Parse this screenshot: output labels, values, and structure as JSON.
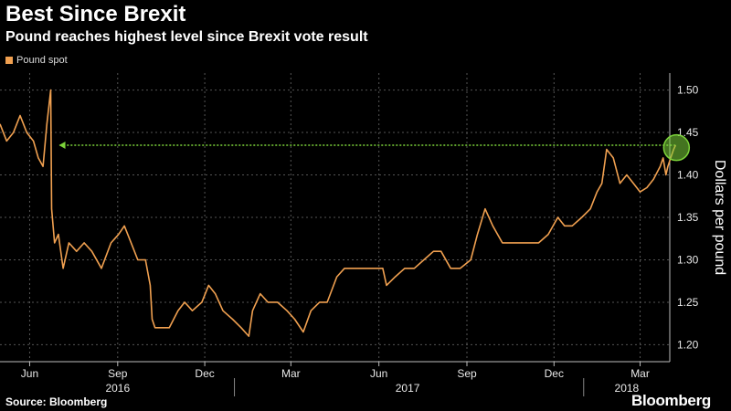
{
  "title": "Best Since Brexit",
  "subtitle": "Pound reaches highest level since Brexit vote result",
  "source": "Source: Bloomberg",
  "brand": "Bloomberg",
  "colors": {
    "line": "#f0a050",
    "arrow": "#7cd33a",
    "grid": "#555555",
    "background": "#000000"
  },
  "chart_data": {
    "type": "line",
    "title": "Best Since Brexit",
    "subtitle": "Pound reaches highest level since Brexit vote result",
    "legend": [
      "Pound spot"
    ],
    "ylabel": "Dollars per pound",
    "xlabel": "",
    "ylim": [
      1.18,
      1.52
    ],
    "yticks": [
      1.2,
      1.25,
      1.3,
      1.35,
      1.4,
      1.45,
      1.5
    ],
    "xlim": [
      "2016-05-01",
      "2018-04-01"
    ],
    "month_ticks": [
      {
        "label": "Jun",
        "date": "2016-06-01"
      },
      {
        "label": "Sep",
        "date": "2016-09-01"
      },
      {
        "label": "Dec",
        "date": "2016-12-01"
      },
      {
        "label": "Mar",
        "date": "2017-03-01"
      },
      {
        "label": "Jun",
        "date": "2017-06-01"
      },
      {
        "label": "Sep",
        "date": "2017-09-01"
      },
      {
        "label": "Dec",
        "date": "2017-12-01"
      },
      {
        "label": "Mar",
        "date": "2018-03-01"
      }
    ],
    "year_labels": [
      {
        "label": "2016",
        "date": "2016-09-01"
      },
      {
        "label": "2017",
        "date": "2017-07-01"
      },
      {
        "label": "2018",
        "date": "2018-02-15"
      }
    ],
    "year_separators": [
      "2017-01-01",
      "2018-01-01"
    ],
    "series": [
      {
        "name": "Pound spot",
        "points": [
          [
            "2016-05-01",
            1.46
          ],
          [
            "2016-05-08",
            1.44
          ],
          [
            "2016-05-15",
            1.45
          ],
          [
            "2016-05-22",
            1.47
          ],
          [
            "2016-05-29",
            1.45
          ],
          [
            "2016-06-05",
            1.44
          ],
          [
            "2016-06-10",
            1.42
          ],
          [
            "2016-06-15",
            1.41
          ],
          [
            "2016-06-19",
            1.46
          ],
          [
            "2016-06-23",
            1.5
          ],
          [
            "2016-06-24",
            1.36
          ],
          [
            "2016-06-27",
            1.32
          ],
          [
            "2016-07-01",
            1.33
          ],
          [
            "2016-07-06",
            1.29
          ],
          [
            "2016-07-12",
            1.32
          ],
          [
            "2016-07-20",
            1.31
          ],
          [
            "2016-07-28",
            1.32
          ],
          [
            "2016-08-05",
            1.31
          ],
          [
            "2016-08-15",
            1.29
          ],
          [
            "2016-08-25",
            1.32
          ],
          [
            "2016-09-02",
            1.33
          ],
          [
            "2016-09-08",
            1.34
          ],
          [
            "2016-09-15",
            1.32
          ],
          [
            "2016-09-22",
            1.3
          ],
          [
            "2016-09-30",
            1.3
          ],
          [
            "2016-10-05",
            1.27
          ],
          [
            "2016-10-07",
            1.23
          ],
          [
            "2016-10-10",
            1.22
          ],
          [
            "2016-10-18",
            1.22
          ],
          [
            "2016-10-25",
            1.22
          ],
          [
            "2016-11-03",
            1.24
          ],
          [
            "2016-11-10",
            1.25
          ],
          [
            "2016-11-18",
            1.24
          ],
          [
            "2016-11-28",
            1.25
          ],
          [
            "2016-12-05",
            1.27
          ],
          [
            "2016-12-12",
            1.26
          ],
          [
            "2016-12-20",
            1.24
          ],
          [
            "2016-12-30",
            1.23
          ],
          [
            "2017-01-08",
            1.22
          ],
          [
            "2017-01-16",
            1.21
          ],
          [
            "2017-01-20",
            1.24
          ],
          [
            "2017-01-28",
            1.26
          ],
          [
            "2017-02-05",
            1.25
          ],
          [
            "2017-02-15",
            1.25
          ],
          [
            "2017-02-25",
            1.24
          ],
          [
            "2017-03-05",
            1.23
          ],
          [
            "2017-03-14",
            1.215
          ],
          [
            "2017-03-22",
            1.24
          ],
          [
            "2017-03-31",
            1.25
          ],
          [
            "2017-04-08",
            1.25
          ],
          [
            "2017-04-18",
            1.28
          ],
          [
            "2017-04-26",
            1.29
          ],
          [
            "2017-05-05",
            1.29
          ],
          [
            "2017-05-15",
            1.29
          ],
          [
            "2017-05-25",
            1.29
          ],
          [
            "2017-06-05",
            1.29
          ],
          [
            "2017-06-09",
            1.27
          ],
          [
            "2017-06-18",
            1.28
          ],
          [
            "2017-06-28",
            1.29
          ],
          [
            "2017-07-08",
            1.29
          ],
          [
            "2017-07-18",
            1.3
          ],
          [
            "2017-07-28",
            1.31
          ],
          [
            "2017-08-05",
            1.31
          ],
          [
            "2017-08-15",
            1.29
          ],
          [
            "2017-08-25",
            1.29
          ],
          [
            "2017-09-05",
            1.3
          ],
          [
            "2017-09-12",
            1.33
          ],
          [
            "2017-09-20",
            1.36
          ],
          [
            "2017-09-28",
            1.34
          ],
          [
            "2017-10-08",
            1.32
          ],
          [
            "2017-10-18",
            1.32
          ],
          [
            "2017-10-28",
            1.32
          ],
          [
            "2017-11-05",
            1.32
          ],
          [
            "2017-11-15",
            1.32
          ],
          [
            "2017-11-25",
            1.33
          ],
          [
            "2017-12-05",
            1.35
          ],
          [
            "2017-12-12",
            1.34
          ],
          [
            "2017-12-20",
            1.34
          ],
          [
            "2017-12-30",
            1.35
          ],
          [
            "2018-01-08",
            1.36
          ],
          [
            "2018-01-15",
            1.38
          ],
          [
            "2018-01-20",
            1.39
          ],
          [
            "2018-01-25",
            1.43
          ],
          [
            "2018-02-01",
            1.42
          ],
          [
            "2018-02-08",
            1.39
          ],
          [
            "2018-02-15",
            1.4
          ],
          [
            "2018-02-22",
            1.39
          ],
          [
            "2018-03-01",
            1.38
          ],
          [
            "2018-03-08",
            1.385
          ],
          [
            "2018-03-15",
            1.395
          ],
          [
            "2018-03-22",
            1.41
          ],
          [
            "2018-03-25",
            1.42
          ],
          [
            "2018-03-28",
            1.4
          ],
          [
            "2018-03-30",
            1.41
          ],
          [
            "2018-04-02",
            1.42
          ],
          [
            "2018-04-05",
            1.43
          ],
          [
            "2018-04-07",
            1.435
          ]
        ]
      }
    ],
    "annotations": [
      {
        "type": "arrow",
        "from": [
          "2018-04-07",
          1.435
        ],
        "to": [
          "2016-06-24",
          1.435
        ]
      },
      {
        "type": "circle",
        "at": [
          "2018-04-08",
          1.43
        ]
      }
    ]
  }
}
